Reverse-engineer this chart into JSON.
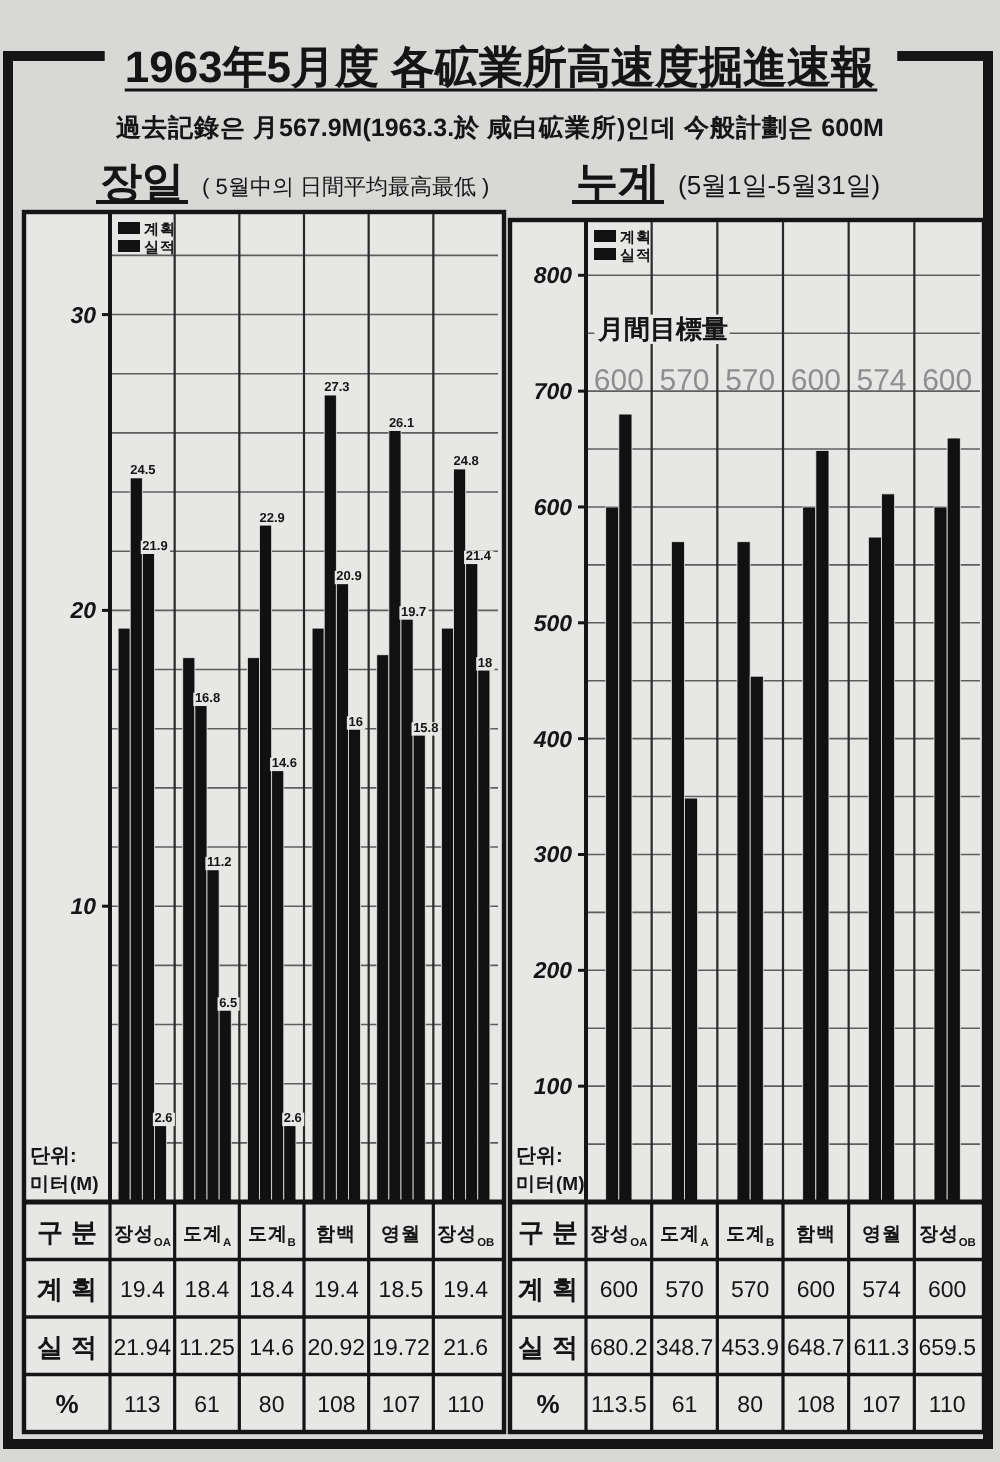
{
  "chart_data": [
    {
      "type": "other",
      "title": "1963年5月度 各砿業所高速度掘進速報",
      "subtitle": "過去記錄은 月567.9M(1963.3.於 咸白砿業所)인데 今般計劃은 600M"
    },
    {
      "type": "bar",
      "title": "장일",
      "subtitle": "( 5월中의 日間平均最高最低 )",
      "xlabel": "구분",
      "ylabel": "단위: 미터(M)",
      "categories": [
        "장성$_{OA}$",
        "도계$_{A}$",
        "도계$_{B}$",
        "함백",
        "영월",
        "장성$_{OB}$"
      ],
      "series": [
        {
          "name": "계획",
          "color": "#111111",
          "values": [
            19.4,
            18.4,
            18.4,
            19.4,
            18.5,
            19.4
          ],
          "value_labels": [
            "19.4",
            "18.4",
            "18.4",
            "19.4",
            "18.5",
            "19.4"
          ]
        },
        {
          "color": "#111111",
          "values": [
            24.5,
            16.8,
            22.9,
            27.3,
            26.1,
            24.8
          ]
        },
        {
          "name": "실적",
          "color": "#111111",
          "values": [
            21.94,
            11.25,
            14.6,
            20.92,
            19.72,
            21.6
          ],
          "value_labels": [
            "21.94",
            "11.25",
            "14.6",
            "20.92",
            "19.72",
            "21.6"
          ]
        },
        {
          "color": "#111111",
          "values": [
            2.6,
            6.5,
            2.6,
            16,
            15.8,
            18
          ]
        }
      ],
      "ylim": [
        0,
        33.4
      ],
      "yticks": [
        {
          "value": 2,
          "label": null
        },
        {
          "value": 4,
          "label": null
        },
        {
          "value": 6,
          "label": null
        },
        {
          "value": 8,
          "label": null
        },
        10,
        {
          "value": 12,
          "label": null
        },
        {
          "value": 14,
          "label": null
        },
        {
          "value": 16,
          "label": null
        },
        {
          "value": 18,
          "label": null
        },
        20,
        {
          "value": 22,
          "label": null
        },
        {
          "value": 24,
          "label": null
        },
        {
          "value": 26,
          "label": null
        },
        {
          "value": 28,
          "label": null
        },
        30,
        {
          "value": 32,
          "label": null
        }
      ],
      "grid": true,
      "legend": "top left",
      "annotations": [
        "%",
        "113",
        "61",
        "80",
        "108",
        "107",
        "110",
        {
          "text": "24.5",
          "x": "장성$_{OA}$",
          "y": 24.5
        },
        {
          "text": "21.9",
          "x": "장성$_{OA}$",
          "y": 21.9
        },
        {
          "text": "2.6",
          "x": "장성$_{OA}$",
          "y": 2.6
        },
        {
          "text": "16.8",
          "x": "도계$_{A}$",
          "y": 16.8
        },
        {
          "text": "11.2",
          "x": "도계$_{A}$",
          "y": 11.2
        },
        {
          "text": "6.5",
          "x": "도계$_{A}$",
          "y": 6.5
        },
        {
          "text": "22.9",
          "x": "도계$_{B}$",
          "y": 22.9
        },
        {
          "text": "14.6",
          "x": "도계$_{B}$",
          "y": 14.6
        },
        {
          "text": "2.6",
          "x": "도계$_{B}$",
          "y": 2.6
        },
        {
          "text": "27.3",
          "x": "함백",
          "y": 27.3
        },
        {
          "text": "20.9",
          "x": "함백",
          "y": 20.9
        },
        {
          "text": "16",
          "x": "함백",
          "y": 16
        },
        {
          "text": "26.1",
          "x": "영월",
          "y": 26.1
        },
        {
          "text": "19.7",
          "x": "영월",
          "y": 19.7
        },
        {
          "text": "15.8",
          "x": "영월",
          "y": 15.8
        },
        {
          "text": "24.8",
          "x": "장성$_{OB}$",
          "y": 24.8
        },
        {
          "text": "21.4",
          "x": "장성$_{OB}$",
          "y": 21.4
        },
        {
          "text": "18",
          "x": "장성$_{OB}$",
          "y": 18
        }
      ]
    },
    {
      "type": "bar",
      "title": "누계",
      "subtitle": "(5월1일-5월31일)",
      "xlabel": "구분",
      "ylabel": "단위: 미터(M)",
      "categories": [
        "장성$_{OA}$",
        "도계$_{A}$",
        "도계$_{B}$",
        "함백",
        "영월",
        "장성$_{OB}$"
      ],
      "series": [
        {
          "name": "계획",
          "color": "#111111",
          "values": [
            600,
            570,
            570,
            600,
            574,
            600
          ],
          "value_labels": [
            "600",
            "570",
            "570",
            "600",
            "574",
            "600"
          ]
        },
        {
          "name": "실적",
          "color": "#111111",
          "values": [
            680.2,
            348.7,
            453.9,
            648.7,
            611.3,
            659.5
          ],
          "value_labels": [
            "680.2",
            "348.7",
            "453.9",
            "648.7",
            "611.3",
            "659.5"
          ]
        }
      ],
      "ylim": [
        0,
        846
      ],
      "yticks": [
        {
          "value": 50,
          "label": null
        },
        100,
        {
          "value": 150,
          "label": null
        },
        200,
        {
          "value": 250,
          "label": null
        },
        300,
        {
          "value": 350,
          "label": null
        },
        400,
        {
          "value": 450,
          "label": null
        },
        500,
        {
          "value": 550,
          "label": null
        },
        600,
        {
          "value": 650,
          "label": null
        },
        700,
        {
          "value": 750,
          "label": null
        },
        800
      ],
      "grid": true,
      "legend": "top left",
      "annotations": [
        "%",
        "113.5",
        "61",
        "80",
        "108",
        "107",
        "110",
        "月間目標量",
        "600",
        "570",
        "570",
        "600",
        "574",
        "600"
      ]
    }
  ]
}
